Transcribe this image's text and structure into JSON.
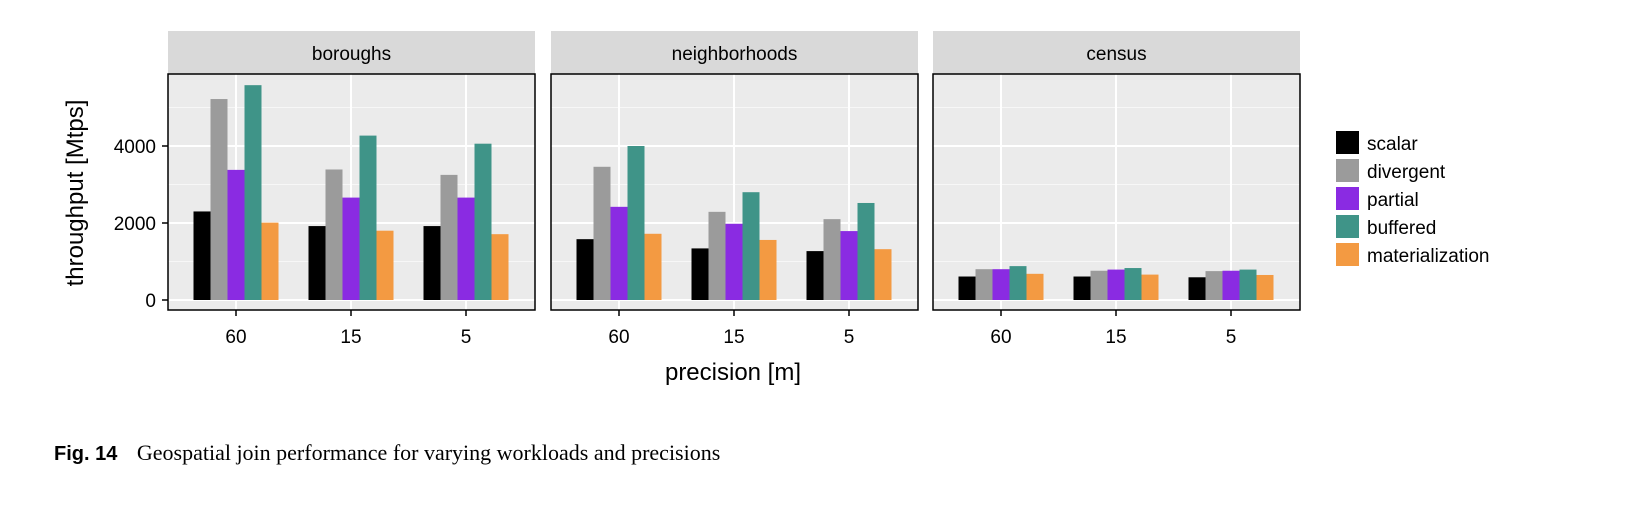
{
  "caption": {
    "label": "Fig. 14",
    "text": "Geospatial join performance for varying workloads and precisions"
  },
  "chart_data": {
    "type": "bar",
    "ylabel": "throughput [Mtps]",
    "xlabel": "precision [m]",
    "ylim": [
      0,
      5900
    ],
    "yticks": [
      0,
      2000,
      4000
    ],
    "grid": true,
    "legend_position": "right",
    "categories": [
      "60",
      "15",
      "5"
    ],
    "series_names": [
      "scalar",
      "divergent",
      "partial",
      "buffered",
      "materialization"
    ],
    "colors": {
      "scalar": "#000000",
      "divergent": "#9b9b9b",
      "partial": "#8a2be2",
      "buffered": "#3f9488",
      "materialization": "#f39a42"
    },
    "panels": [
      {
        "title": "boroughs",
        "series": [
          {
            "name": "scalar",
            "values": [
              2300,
              1920,
              1920
            ]
          },
          {
            "name": "divergent",
            "values": [
              5220,
              3390,
              3250
            ]
          },
          {
            "name": "partial",
            "values": [
              3380,
              2660,
              2660
            ]
          },
          {
            "name": "buffered",
            "values": [
              5580,
              4270,
              4060
            ]
          },
          {
            "name": "materialization",
            "values": [
              2010,
              1800,
              1710
            ]
          }
        ]
      },
      {
        "title": "neighborhoods",
        "series": [
          {
            "name": "scalar",
            "values": [
              1580,
              1340,
              1270
            ]
          },
          {
            "name": "divergent",
            "values": [
              3460,
              2290,
              2100
            ]
          },
          {
            "name": "partial",
            "values": [
              2420,
              1980,
              1790
            ]
          },
          {
            "name": "buffered",
            "values": [
              4000,
              2800,
              2520
            ]
          },
          {
            "name": "materialization",
            "values": [
              1720,
              1560,
              1320
            ]
          }
        ]
      },
      {
        "title": "census",
        "series": [
          {
            "name": "scalar",
            "values": [
              610,
              610,
              590
            ]
          },
          {
            "name": "divergent",
            "values": [
              800,
              760,
              750
            ]
          },
          {
            "name": "partial",
            "values": [
              800,
              790,
              760
            ]
          },
          {
            "name": "buffered",
            "values": [
              880,
              830,
              790
            ]
          },
          {
            "name": "materialization",
            "values": [
              680,
              660,
              650
            ]
          }
        ]
      }
    ]
  }
}
